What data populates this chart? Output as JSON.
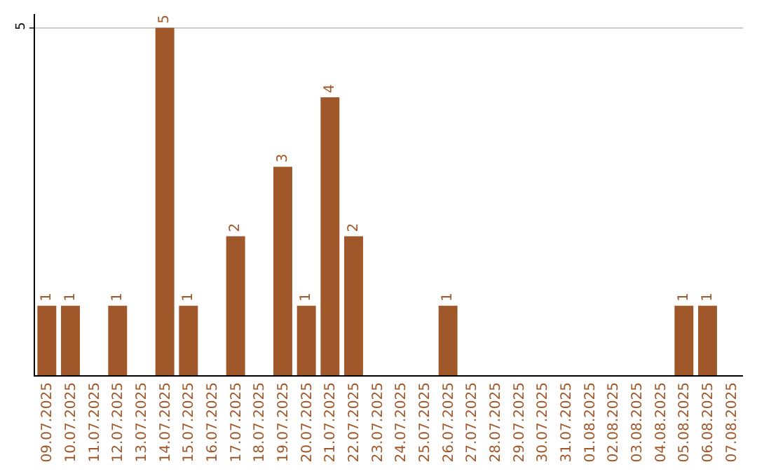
{
  "chart_data": {
    "type": "bar",
    "categories": [
      "09.07.2025",
      "10.07.2025",
      "11.07.2025",
      "12.07.2025",
      "13.07.2025",
      "14.07.2025",
      "15.07.2025",
      "16.07.2025",
      "17.07.2025",
      "18.07.2025",
      "19.07.2025",
      "20.07.2025",
      "21.07.2025",
      "22.07.2025",
      "23.07.2025",
      "24.07.2025",
      "25.07.2025",
      "26.07.2025",
      "27.07.2025",
      "28.07.2025",
      "29.07.2025",
      "30.07.2025",
      "31.07.2025",
      "01.08.2025",
      "02.08.2025",
      "03.08.2025",
      "04.08.2025",
      "05.08.2025",
      "06.08.2025",
      "07.08.2025"
    ],
    "values": [
      1,
      1,
      0,
      1,
      0,
      5,
      1,
      0,
      2,
      0,
      3,
      1,
      4,
      2,
      0,
      0,
      0,
      1,
      0,
      0,
      0,
      0,
      0,
      0,
      0,
      0,
      0,
      1,
      1,
      0
    ],
    "value_labels": [
      "1",
      "1",
      null,
      "1",
      null,
      "5",
      "1",
      null,
      "2",
      null,
      "3",
      "1",
      "4",
      "2",
      null,
      null,
      null,
      "1",
      null,
      null,
      null,
      null,
      null,
      null,
      null,
      null,
      null,
      "1",
      "1",
      null
    ],
    "color": "#a0582a",
    "ylim": [
      0,
      5.2
    ],
    "yticks": [
      5
    ],
    "grid": "y",
    "legend": false
  }
}
